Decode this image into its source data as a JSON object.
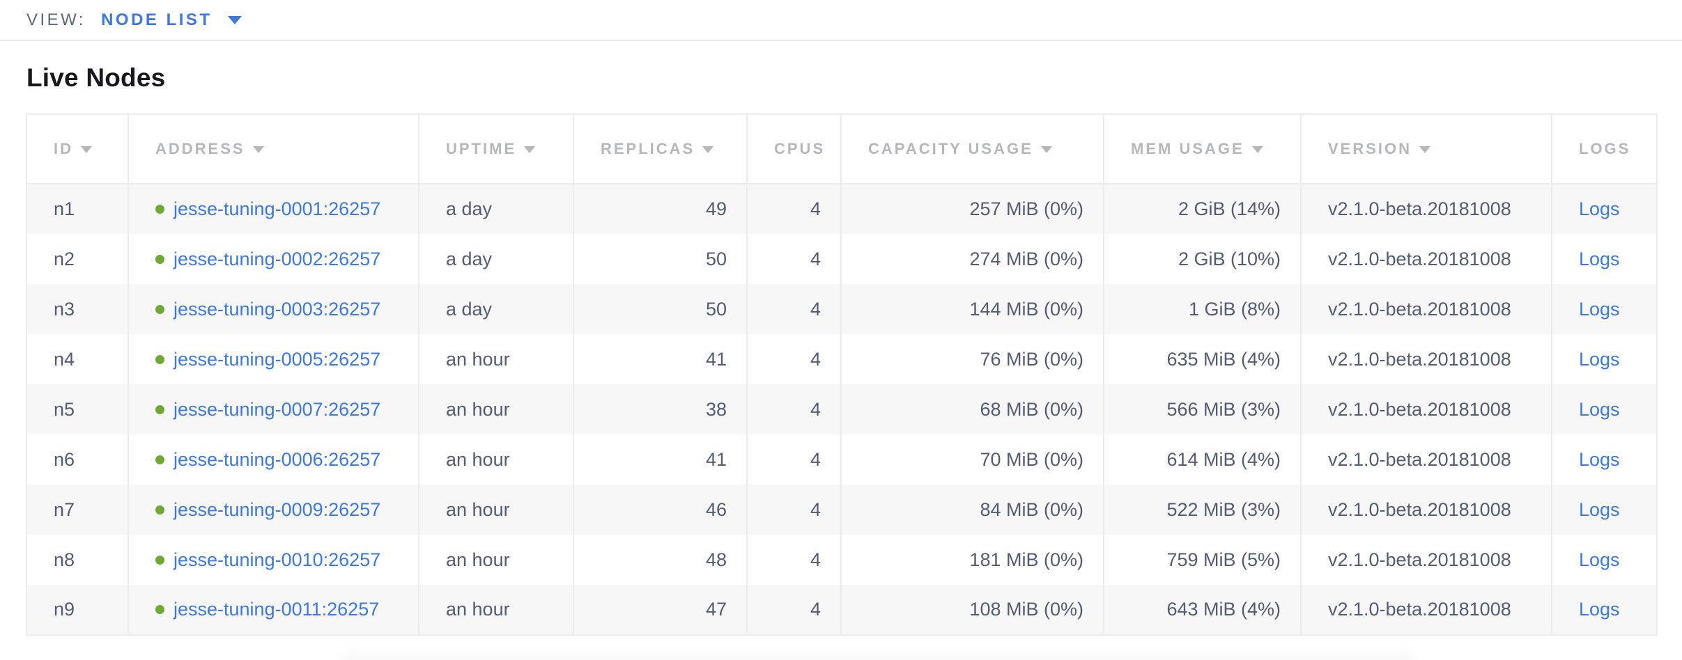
{
  "toolbar": {
    "view_label": "VIEW:",
    "view_value": "NODE LIST"
  },
  "page": {
    "title": "Live Nodes"
  },
  "table": {
    "columns": [
      {
        "field": "id",
        "label": "ID",
        "sorted": true
      },
      {
        "field": "address",
        "label": "ADDRESS",
        "sorted": true
      },
      {
        "field": "uptime",
        "label": "UPTIME",
        "sorted": true
      },
      {
        "field": "replicas",
        "label": "REPLICAS",
        "sorted": true
      },
      {
        "field": "cpus",
        "label": "CPUS",
        "sorted": false
      },
      {
        "field": "capacity",
        "label": "CAPACITY USAGE",
        "sorted": true
      },
      {
        "field": "mem",
        "label": "MEM USAGE",
        "sorted": true
      },
      {
        "field": "version",
        "label": "VERSION",
        "sorted": true
      },
      {
        "field": "logs",
        "label": "LOGS",
        "sorted": false
      }
    ],
    "rows": [
      {
        "id": "n1",
        "address": "jesse-tuning-0001:26257",
        "uptime": "a day",
        "replicas": "49",
        "cpus": "4",
        "capacity": "257 MiB (0%)",
        "mem": "2 GiB (14%)",
        "version": "v2.1.0-beta.20181008",
        "logs": "Logs"
      },
      {
        "id": "n2",
        "address": "jesse-tuning-0002:26257",
        "uptime": "a day",
        "replicas": "50",
        "cpus": "4",
        "capacity": "274 MiB (0%)",
        "mem": "2 GiB (10%)",
        "version": "v2.1.0-beta.20181008",
        "logs": "Logs"
      },
      {
        "id": "n3",
        "address": "jesse-tuning-0003:26257",
        "uptime": "a day",
        "replicas": "50",
        "cpus": "4",
        "capacity": "144 MiB (0%)",
        "mem": "1 GiB (8%)",
        "version": "v2.1.0-beta.20181008",
        "logs": "Logs"
      },
      {
        "id": "n4",
        "address": "jesse-tuning-0005:26257",
        "uptime": "an hour",
        "replicas": "41",
        "cpus": "4",
        "capacity": "76 MiB (0%)",
        "mem": "635 MiB (4%)",
        "version": "v2.1.0-beta.20181008",
        "logs": "Logs"
      },
      {
        "id": "n5",
        "address": "jesse-tuning-0007:26257",
        "uptime": "an hour",
        "replicas": "38",
        "cpus": "4",
        "capacity": "68 MiB (0%)",
        "mem": "566 MiB (3%)",
        "version": "v2.1.0-beta.20181008",
        "logs": "Logs"
      },
      {
        "id": "n6",
        "address": "jesse-tuning-0006:26257",
        "uptime": "an hour",
        "replicas": "41",
        "cpus": "4",
        "capacity": "70 MiB (0%)",
        "mem": "614 MiB (4%)",
        "version": "v2.1.0-beta.20181008",
        "logs": "Logs"
      },
      {
        "id": "n7",
        "address": "jesse-tuning-0009:26257",
        "uptime": "an hour",
        "replicas": "46",
        "cpus": "4",
        "capacity": "84 MiB (0%)",
        "mem": "522 MiB (3%)",
        "version": "v2.1.0-beta.20181008",
        "logs": "Logs"
      },
      {
        "id": "n8",
        "address": "jesse-tuning-0010:26257",
        "uptime": "an hour",
        "replicas": "48",
        "cpus": "4",
        "capacity": "181 MiB (0%)",
        "mem": "759 MiB (5%)",
        "version": "v2.1.0-beta.20181008",
        "logs": "Logs"
      },
      {
        "id": "n9",
        "address": "jesse-tuning-0011:26257",
        "uptime": "an hour",
        "replicas": "47",
        "cpus": "4",
        "capacity": "108 MiB (0%)",
        "mem": "643 MiB (4%)",
        "version": "v2.1.0-beta.20181008",
        "logs": "Logs"
      }
    ]
  },
  "colors": {
    "accent_blue": "#3d79dd",
    "live_green": "#6fa837",
    "header_gray": "#b4b7bc",
    "cell_text": "#535c72",
    "row_stripe": "#f7f7f7",
    "table_border": "#ececec"
  }
}
